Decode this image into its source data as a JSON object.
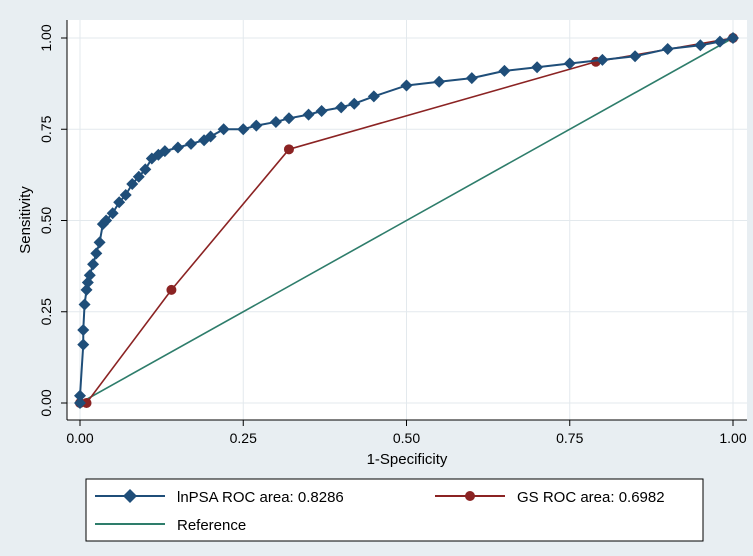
{
  "chart_data": {
    "type": "line",
    "title": "",
    "xlabel": "1-Specificity",
    "ylabel": "Sensitivity",
    "xlim": [
      0,
      1
    ],
    "ylim": [
      0,
      1
    ],
    "x_ticks": [
      "0.00",
      "0.25",
      "0.50",
      "0.75",
      "1.00"
    ],
    "y_ticks": [
      "0.00",
      "0.25",
      "0.50",
      "0.75",
      "1.00"
    ],
    "grid": true,
    "legend_position": "bottom",
    "series": [
      {
        "name": "lnPSA ROC area: 0.8286",
        "color": "#1f4e79",
        "marker": "diamond",
        "x": [
          0,
          0,
          0.005,
          0.005,
          0.007,
          0.01,
          0.012,
          0.015,
          0.02,
          0.025,
          0.03,
          0.035,
          0.04,
          0.05,
          0.06,
          0.07,
          0.08,
          0.09,
          0.1,
          0.11,
          0.12,
          0.13,
          0.15,
          0.17,
          0.19,
          0.2,
          0.22,
          0.25,
          0.27,
          0.3,
          0.32,
          0.35,
          0.37,
          0.4,
          0.42,
          0.45,
          0.5,
          0.55,
          0.6,
          0.65,
          0.7,
          0.75,
          0.8,
          0.85,
          0.9,
          0.95,
          0.98,
          1.0
        ],
        "y": [
          0,
          0.02,
          0.16,
          0.2,
          0.27,
          0.31,
          0.33,
          0.35,
          0.38,
          0.41,
          0.44,
          0.49,
          0.5,
          0.52,
          0.55,
          0.57,
          0.6,
          0.62,
          0.64,
          0.67,
          0.68,
          0.69,
          0.7,
          0.71,
          0.72,
          0.73,
          0.75,
          0.75,
          0.76,
          0.77,
          0.78,
          0.79,
          0.8,
          0.81,
          0.82,
          0.84,
          0.87,
          0.88,
          0.89,
          0.91,
          0.92,
          0.93,
          0.94,
          0.95,
          0.97,
          0.98,
          0.99,
          1.0
        ]
      },
      {
        "name": "GS ROC area: 0.6982",
        "color": "#8b2323",
        "marker": "circle",
        "x": [
          0.0,
          0.01,
          0.14,
          0.32,
          0.79,
          1.0
        ],
        "y": [
          0.0,
          0.0,
          0.31,
          0.695,
          0.935,
          1.0
        ]
      },
      {
        "name": "Reference",
        "color": "#2e7d6b",
        "marker": "none",
        "x": [
          0,
          1
        ],
        "y": [
          0,
          1
        ]
      }
    ]
  }
}
